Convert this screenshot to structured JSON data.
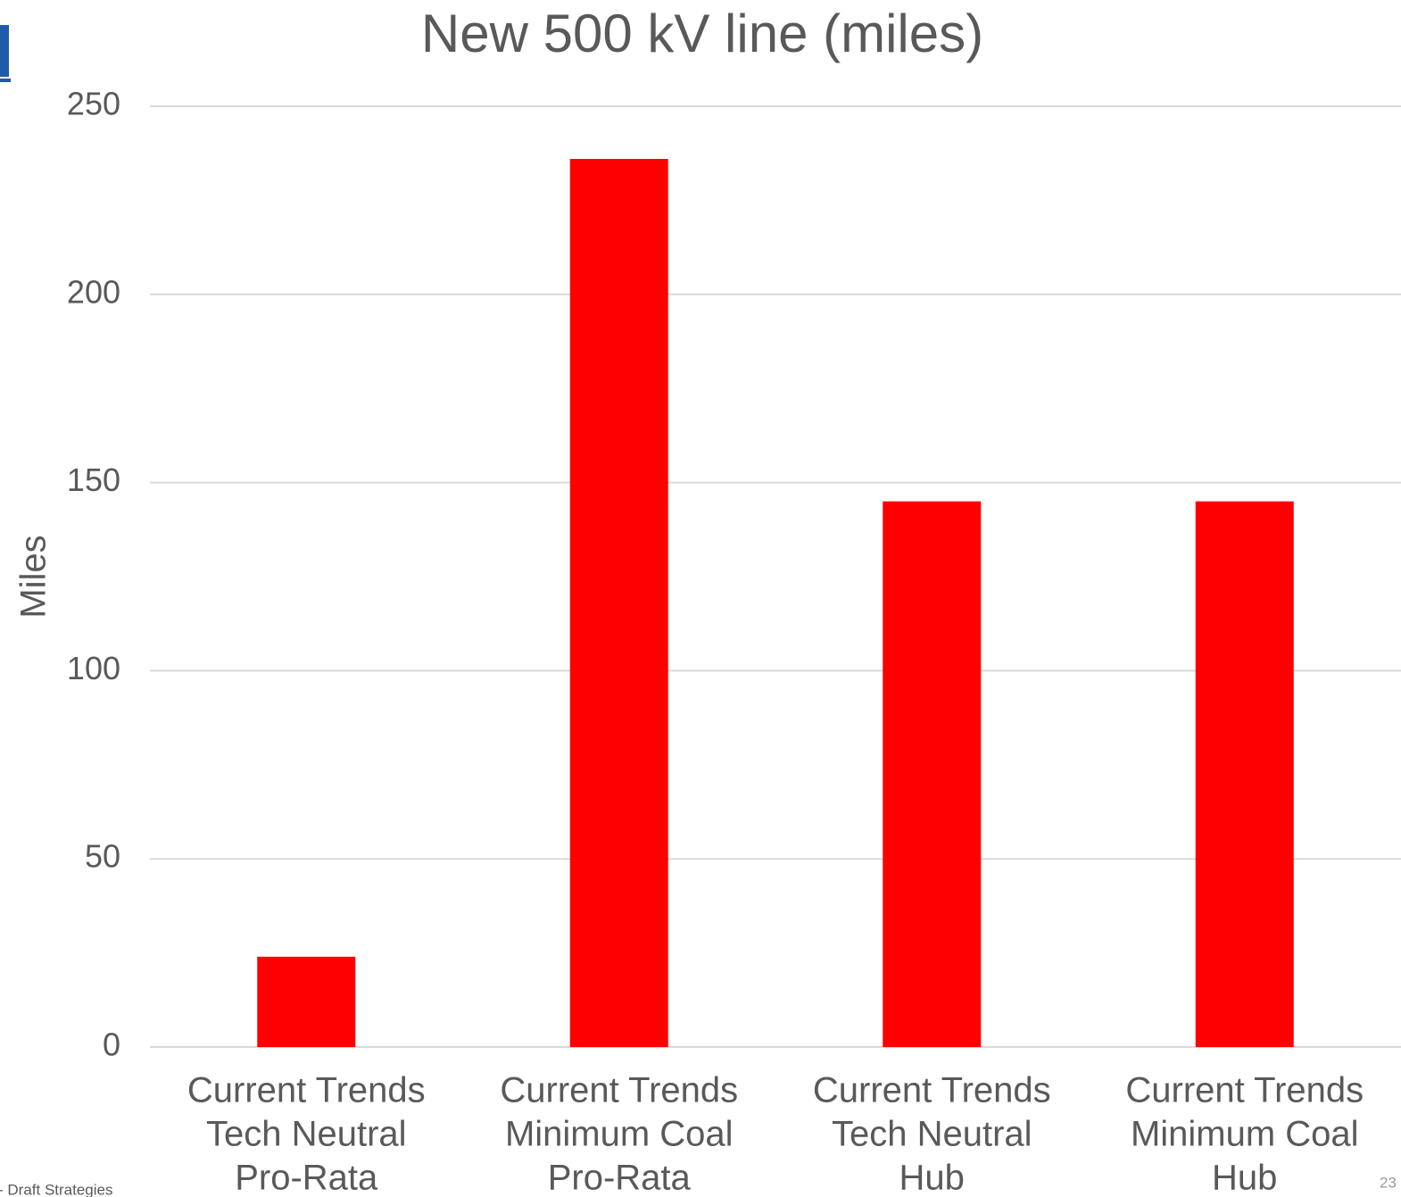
{
  "chart_data": {
    "type": "bar",
    "title": "New 500 kV line (miles)",
    "y_label": "Miles",
    "categories": [
      [
        "Current Trends",
        "Tech Neutral",
        "Pro-Rata"
      ],
      [
        "Current Trends",
        "Minimum Coal",
        "Pro-Rata"
      ],
      [
        "Current Trends",
        "Tech Neutral",
        "Hub"
      ],
      [
        "Current Trends",
        "Minimum Coal",
        "Hub"
      ]
    ],
    "values": [
      24,
      236,
      145,
      145
    ],
    "color": "#ff0000",
    "ylim": [
      0,
      250
    ],
    "yticks": [
      0,
      50,
      100,
      150,
      200,
      250
    ],
    "grid": true
  },
  "footer": "- Draft Strategies",
  "page_number": "23"
}
